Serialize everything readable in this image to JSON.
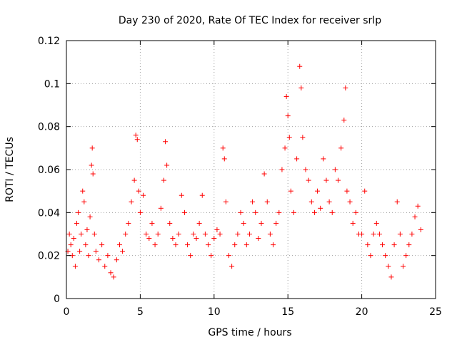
{
  "chart_data": {
    "type": "scatter",
    "title": "Day 230 of 2020, Rate Of TEC Index for receiver srlp",
    "xlabel": "GPS time / hours",
    "ylabel": "ROTI / TECUs",
    "xlim": [
      0,
      25
    ],
    "ylim": [
      0,
      0.12
    ],
    "x_ticks": [
      "0",
      "5",
      "10",
      "15",
      "20",
      "25"
    ],
    "y_ticks": [
      "0",
      "0.02",
      "0.04",
      "0.06",
      "0.08",
      "0.1",
      "0.12"
    ],
    "grid": true,
    "marker": "plus",
    "color": "#ff0000",
    "series": [
      {
        "points": [
          [
            0.1,
            0.022
          ],
          [
            0.2,
            0.03
          ],
          [
            0.3,
            0.025
          ],
          [
            0.4,
            0.02
          ],
          [
            0.5,
            0.028
          ],
          [
            0.6,
            0.015
          ],
          [
            0.7,
            0.035
          ],
          [
            0.8,
            0.04
          ],
          [
            0.9,
            0.022
          ],
          [
            1.0,
            0.03
          ],
          [
            1.1,
            0.05
          ],
          [
            1.2,
            0.045
          ],
          [
            1.3,
            0.025
          ],
          [
            1.4,
            0.032
          ],
          [
            1.5,
            0.02
          ],
          [
            1.6,
            0.038
          ],
          [
            1.7,
            0.062
          ],
          [
            1.75,
            0.07
          ],
          [
            1.8,
            0.058
          ],
          [
            1.9,
            0.03
          ],
          [
            2.0,
            0.022
          ],
          [
            2.2,
            0.018
          ],
          [
            2.4,
            0.025
          ],
          [
            2.6,
            0.015
          ],
          [
            2.8,
            0.02
          ],
          [
            3.0,
            0.012
          ],
          [
            3.2,
            0.01
          ],
          [
            3.4,
            0.018
          ],
          [
            3.6,
            0.025
          ],
          [
            3.8,
            0.022
          ],
          [
            4.0,
            0.03
          ],
          [
            4.2,
            0.035
          ],
          [
            4.4,
            0.045
          ],
          [
            4.6,
            0.055
          ],
          [
            4.7,
            0.076
          ],
          [
            4.8,
            0.074
          ],
          [
            4.9,
            0.05
          ],
          [
            5.0,
            0.04
          ],
          [
            5.2,
            0.048
          ],
          [
            5.4,
            0.03
          ],
          [
            5.6,
            0.028
          ],
          [
            5.8,
            0.035
          ],
          [
            6.0,
            0.025
          ],
          [
            6.2,
            0.03
          ],
          [
            6.4,
            0.042
          ],
          [
            6.6,
            0.055
          ],
          [
            6.7,
            0.073
          ],
          [
            6.8,
            0.062
          ],
          [
            7.0,
            0.035
          ],
          [
            7.2,
            0.028
          ],
          [
            7.4,
            0.025
          ],
          [
            7.6,
            0.03
          ],
          [
            7.8,
            0.048
          ],
          [
            8.0,
            0.04
          ],
          [
            8.2,
            0.025
          ],
          [
            8.4,
            0.02
          ],
          [
            8.6,
            0.03
          ],
          [
            8.8,
            0.028
          ],
          [
            9.0,
            0.035
          ],
          [
            9.2,
            0.048
          ],
          [
            9.4,
            0.03
          ],
          [
            9.6,
            0.025
          ],
          [
            9.8,
            0.02
          ],
          [
            10.0,
            0.028
          ],
          [
            10.2,
            0.032
          ],
          [
            10.4,
            0.03
          ],
          [
            10.6,
            0.07
          ],
          [
            10.7,
            0.065
          ],
          [
            10.8,
            0.045
          ],
          [
            11.0,
            0.02
          ],
          [
            11.2,
            0.015
          ],
          [
            11.4,
            0.025
          ],
          [
            11.6,
            0.03
          ],
          [
            11.8,
            0.04
          ],
          [
            12.0,
            0.035
          ],
          [
            12.2,
            0.025
          ],
          [
            12.4,
            0.03
          ],
          [
            12.6,
            0.045
          ],
          [
            12.8,
            0.04
          ],
          [
            13.0,
            0.028
          ],
          [
            13.2,
            0.035
          ],
          [
            13.4,
            0.058
          ],
          [
            13.6,
            0.045
          ],
          [
            13.8,
            0.03
          ],
          [
            14.0,
            0.025
          ],
          [
            14.2,
            0.035
          ],
          [
            14.4,
            0.04
          ],
          [
            14.6,
            0.06
          ],
          [
            14.8,
            0.07
          ],
          [
            14.9,
            0.094
          ],
          [
            15.0,
            0.085
          ],
          [
            15.1,
            0.075
          ],
          [
            15.2,
            0.05
          ],
          [
            15.4,
            0.04
          ],
          [
            15.6,
            0.065
          ],
          [
            15.8,
            0.108
          ],
          [
            15.9,
            0.098
          ],
          [
            16.0,
            0.075
          ],
          [
            16.2,
            0.06
          ],
          [
            16.4,
            0.055
          ],
          [
            16.6,
            0.045
          ],
          [
            16.8,
            0.04
          ],
          [
            17.0,
            0.05
          ],
          [
            17.2,
            0.042
          ],
          [
            17.4,
            0.065
          ],
          [
            17.6,
            0.055
          ],
          [
            17.8,
            0.045
          ],
          [
            18.0,
            0.04
          ],
          [
            18.2,
            0.06
          ],
          [
            18.4,
            0.055
          ],
          [
            18.6,
            0.07
          ],
          [
            18.8,
            0.083
          ],
          [
            18.9,
            0.098
          ],
          [
            19.0,
            0.05
          ],
          [
            19.2,
            0.045
          ],
          [
            19.4,
            0.035
          ],
          [
            19.6,
            0.04
          ],
          [
            19.8,
            0.03
          ],
          [
            20.0,
            0.03
          ],
          [
            20.2,
            0.05
          ],
          [
            20.4,
            0.025
          ],
          [
            20.6,
            0.02
          ],
          [
            20.8,
            0.03
          ],
          [
            21.0,
            0.035
          ],
          [
            21.2,
            0.03
          ],
          [
            21.4,
            0.025
          ],
          [
            21.6,
            0.02
          ],
          [
            21.8,
            0.015
          ],
          [
            22.0,
            0.01
          ],
          [
            22.2,
            0.025
          ],
          [
            22.4,
            0.045
          ],
          [
            22.6,
            0.03
          ],
          [
            22.8,
            0.015
          ],
          [
            23.0,
            0.02
          ],
          [
            23.2,
            0.025
          ],
          [
            23.4,
            0.03
          ],
          [
            23.6,
            0.038
          ],
          [
            23.8,
            0.043
          ],
          [
            24.0,
            0.032
          ]
        ]
      }
    ]
  }
}
